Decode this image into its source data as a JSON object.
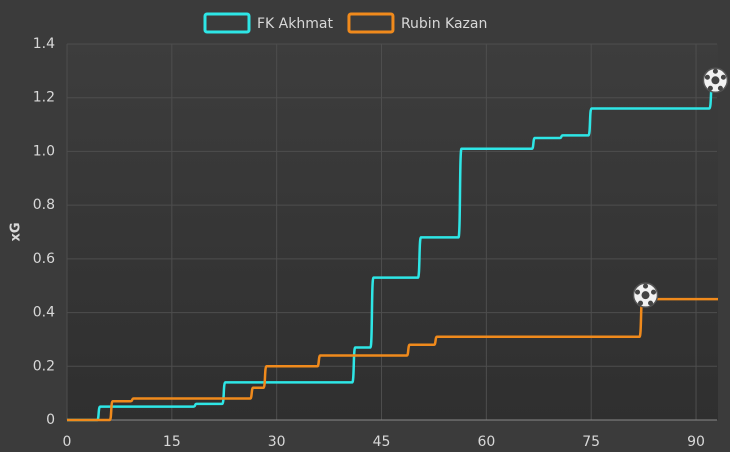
{
  "chart_data": {
    "type": "step",
    "y_label": "xG",
    "xlim": [
      0,
      93
    ],
    "ylim": [
      0,
      1.4
    ],
    "xticks": [
      0,
      15,
      30,
      45,
      60,
      75,
      90
    ],
    "yticks": [
      0,
      {
        "value": 0.2,
        "label": "0.2"
      },
      {
        "value": 0.4,
        "label": "0.4"
      },
      {
        "value": 0.6,
        "label": "0.6"
      },
      {
        "value": 0.8,
        "label": "0.8"
      },
      {
        "value": 1.0,
        "label": "1.0"
      },
      {
        "value": 1.2,
        "label": "1.2"
      },
      {
        "value": 1.4,
        "label": "1.4"
      }
    ],
    "grid": true,
    "series": [
      {
        "name": "FK Akhmat",
        "color": "#2ee6e6",
        "x": [
          0,
          4.6,
          18.4,
          22.5,
          41.1,
          43.7,
          50.5,
          56.3,
          66.8,
          70.8,
          74.9,
          92.2,
          93
        ],
        "values": [
          0,
          0.05,
          0.06,
          0.14,
          0.27,
          0.53,
          0.68,
          1.01,
          1.05,
          1.06,
          1.16,
          1.25,
          1.25
        ],
        "goals": [
          92.2
        ]
      },
      {
        "name": "Rubin Kazan",
        "color": "#f08a1c",
        "x": [
          0,
          6.4,
          9.4,
          26.5,
          28.4,
          36.1,
          48.9,
          52.8,
          82.2,
          93
        ],
        "values": [
          0,
          0.07,
          0.08,
          0.12,
          0.2,
          0.24,
          0.28,
          0.31,
          0.45,
          0.45
        ],
        "goals": [
          82.2
        ]
      }
    ]
  }
}
